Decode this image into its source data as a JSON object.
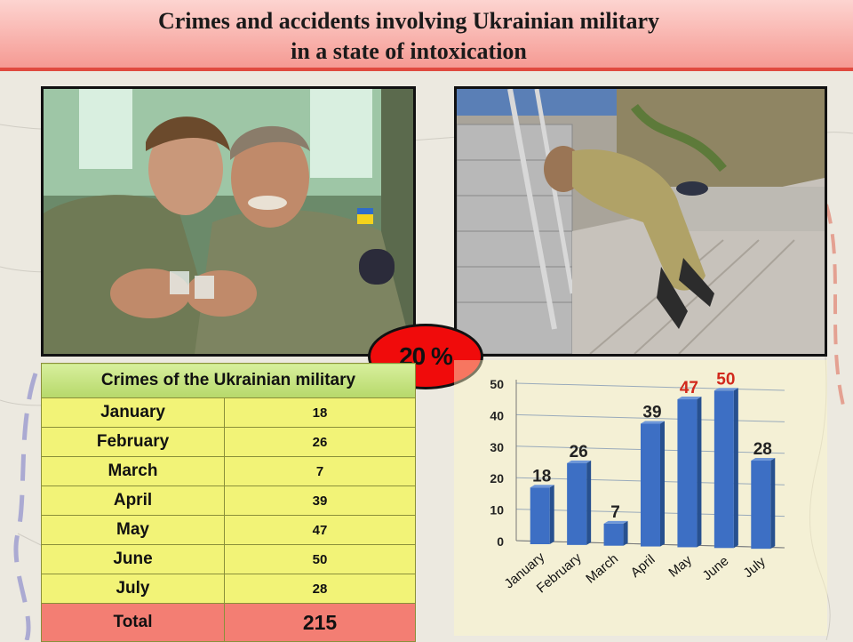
{
  "title": {
    "line1": "Crimes and accidents involving Ukrainian military",
    "line2": "in a state of intoxication"
  },
  "badge": {
    "text": "20 %"
  },
  "photos": {
    "left": "photo-two-soldiers-toasting",
    "right": "photo-soldier-lying-on-pavement"
  },
  "table": {
    "header": "Crimes of the Ukrainian military",
    "rows": [
      {
        "month": "January",
        "value": "18"
      },
      {
        "month": "February",
        "value": "26"
      },
      {
        "month": "March",
        "value": "7"
      },
      {
        "month": "April",
        "value": "39"
      },
      {
        "month": "May",
        "value": "47"
      },
      {
        "month": "June",
        "value": "50"
      },
      {
        "month": "July",
        "value": "28"
      }
    ],
    "total_label": "Total",
    "total_value": "215"
  },
  "chart_data": {
    "type": "bar",
    "categories": [
      "January",
      "February",
      "March",
      "April",
      "May",
      "June",
      "July"
    ],
    "values": [
      18,
      26,
      7,
      39,
      47,
      50,
      28
    ],
    "highlight_categories": [
      "May",
      "June"
    ],
    "ylim": [
      0,
      50
    ],
    "yticks": [
      0,
      10,
      20,
      30,
      40,
      50
    ],
    "grid": true,
    "legend": "none",
    "colors": {
      "bar": "#3d6fc4",
      "label": "#222222",
      "highlight_label": "#d1281c"
    }
  }
}
